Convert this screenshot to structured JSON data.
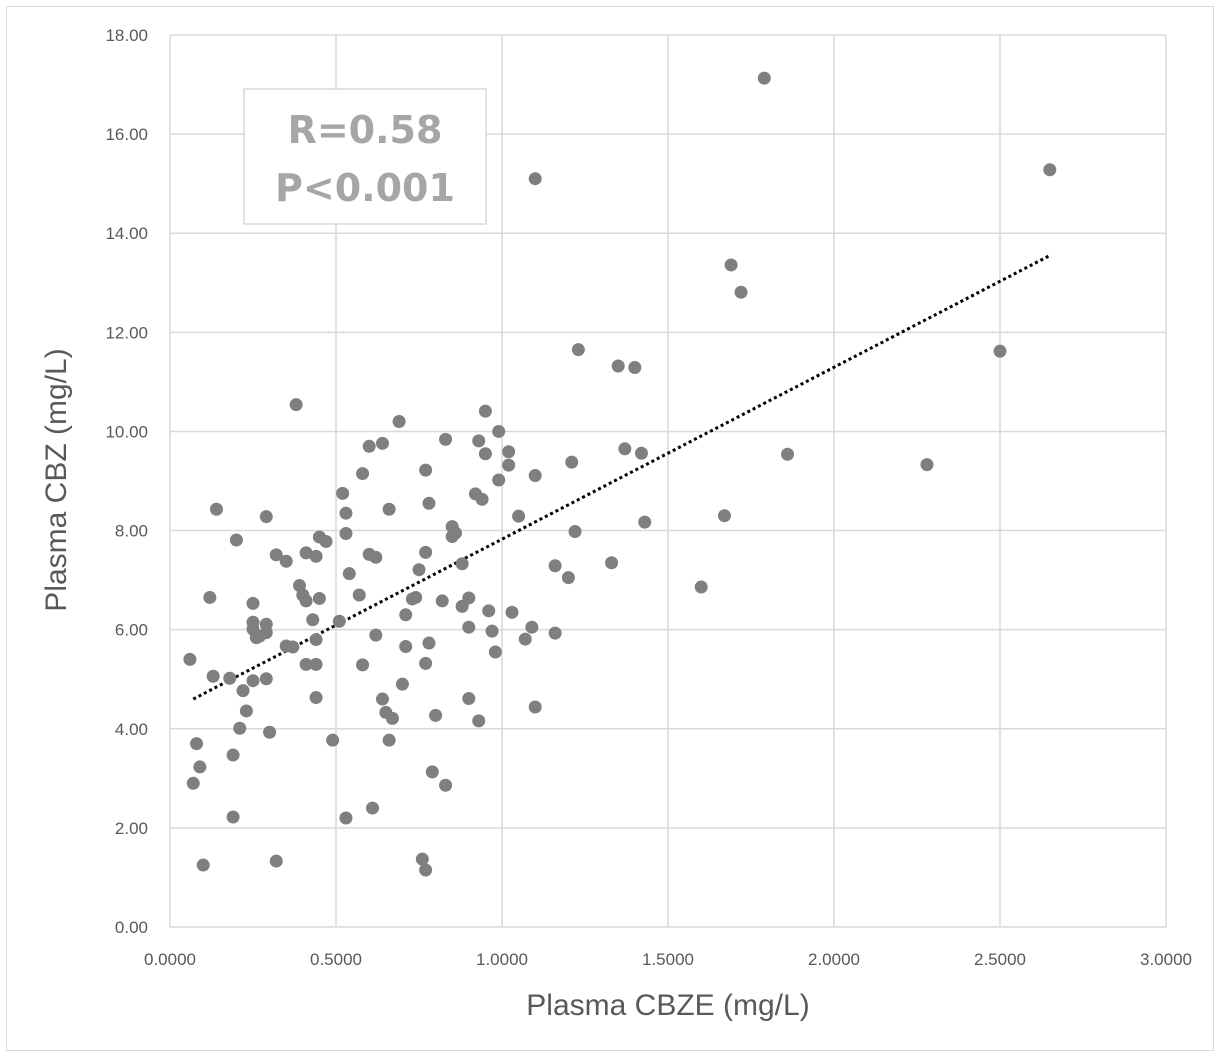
{
  "chart_data": {
    "type": "scatter",
    "title": "",
    "xlabel": "Plasma CBZE (mg/L)",
    "ylabel": "Plasma CBZ (mg/L)",
    "xlim": [
      0,
      3
    ],
    "ylim": [
      0,
      18
    ],
    "xticks": [
      "0.0000",
      "0.5000",
      "1.0000",
      "1.5000",
      "2.0000",
      "2.5000",
      "3.0000"
    ],
    "yticks": [
      "0.00",
      "2.00",
      "4.00",
      "6.00",
      "8.00",
      "10.00",
      "12.00",
      "14.00",
      "16.00",
      "18.00"
    ],
    "grid": true,
    "legend": "none",
    "marker_color": "#7f7f7f",
    "trendline": {
      "style": "dotted",
      "color": "#000000",
      "x": [
        0.07,
        2.65
      ],
      "y": [
        4.6,
        13.55
      ]
    },
    "annotation": {
      "line1": "R=0.58",
      "line2": "P<0.001"
    },
    "series": [
      {
        "points": [
          [
            0.06,
            5.4
          ],
          [
            0.07,
            2.9
          ],
          [
            0.08,
            3.7
          ],
          [
            0.09,
            3.23
          ],
          [
            0.1,
            1.25
          ],
          [
            0.12,
            6.65
          ],
          [
            0.13,
            5.06
          ],
          [
            0.14,
            8.43
          ],
          [
            0.18,
            5.02
          ],
          [
            0.19,
            3.47
          ],
          [
            0.19,
            2.22
          ],
          [
            0.2,
            7.81
          ],
          [
            0.21,
            4.01
          ],
          [
            0.22,
            4.77
          ],
          [
            0.23,
            4.36
          ],
          [
            0.25,
            6.53
          ],
          [
            0.25,
            6.15
          ],
          [
            0.25,
            6.01
          ],
          [
            0.25,
            4.97
          ],
          [
            0.26,
            5.84
          ],
          [
            0.27,
            5.87
          ],
          [
            0.29,
            8.28
          ],
          [
            0.29,
            6.11
          ],
          [
            0.29,
            5.94
          ],
          [
            0.29,
            5.01
          ],
          [
            0.3,
            3.93
          ],
          [
            0.32,
            7.51
          ],
          [
            0.32,
            1.33
          ],
          [
            0.35,
            7.38
          ],
          [
            0.35,
            5.67
          ],
          [
            0.37,
            5.65
          ],
          [
            0.38,
            10.54
          ],
          [
            0.39,
            6.89
          ],
          [
            0.4,
            6.7
          ],
          [
            0.41,
            7.55
          ],
          [
            0.41,
            6.58
          ],
          [
            0.41,
            5.3
          ],
          [
            0.43,
            6.2
          ],
          [
            0.44,
            7.48
          ],
          [
            0.44,
            5.8
          ],
          [
            0.44,
            5.3
          ],
          [
            0.44,
            4.63
          ],
          [
            0.45,
            7.87
          ],
          [
            0.45,
            6.63
          ],
          [
            0.47,
            7.78
          ],
          [
            0.49,
            3.77
          ],
          [
            0.51,
            6.17
          ],
          [
            0.52,
            8.75
          ],
          [
            0.53,
            8.35
          ],
          [
            0.53,
            7.94
          ],
          [
            0.53,
            2.2
          ],
          [
            0.54,
            7.13
          ],
          [
            0.57,
            6.7
          ],
          [
            0.58,
            9.15
          ],
          [
            0.58,
            5.29
          ],
          [
            0.6,
            9.7
          ],
          [
            0.6,
            7.52
          ],
          [
            0.61,
            2.4
          ],
          [
            0.62,
            7.46
          ],
          [
            0.62,
            5.89
          ],
          [
            0.64,
            9.76
          ],
          [
            0.64,
            4.6
          ],
          [
            0.65,
            4.33
          ],
          [
            0.66,
            3.77
          ],
          [
            0.66,
            8.43
          ],
          [
            0.67,
            4.21
          ],
          [
            0.69,
            10.2
          ],
          [
            0.7,
            4.9
          ],
          [
            0.71,
            6.3
          ],
          [
            0.71,
            5.66
          ],
          [
            0.73,
            6.62
          ],
          [
            0.74,
            6.65
          ],
          [
            0.75,
            7.21
          ],
          [
            0.76,
            1.37
          ],
          [
            0.77,
            7.56
          ],
          [
            0.77,
            9.22
          ],
          [
            0.77,
            5.32
          ],
          [
            0.77,
            1.15
          ],
          [
            0.78,
            8.55
          ],
          [
            0.78,
            5.73
          ],
          [
            0.79,
            3.13
          ],
          [
            0.8,
            4.27
          ],
          [
            0.82,
            6.58
          ],
          [
            0.83,
            9.84
          ],
          [
            0.83,
            2.86
          ],
          [
            0.85,
            8.08
          ],
          [
            0.85,
            7.88
          ],
          [
            0.86,
            7.95
          ],
          [
            0.88,
            7.33
          ],
          [
            0.88,
            6.47
          ],
          [
            0.9,
            6.64
          ],
          [
            0.9,
            6.05
          ],
          [
            0.9,
            4.61
          ],
          [
            0.92,
            8.74
          ],
          [
            0.93,
            9.81
          ],
          [
            0.93,
            4.16
          ],
          [
            0.94,
            8.63
          ],
          [
            0.95,
            10.41
          ],
          [
            0.95,
            9.55
          ],
          [
            0.96,
            6.38
          ],
          [
            0.97,
            5.97
          ],
          [
            0.98,
            5.55
          ],
          [
            0.99,
            10.0
          ],
          [
            0.99,
            9.02
          ],
          [
            1.02,
            9.59
          ],
          [
            1.02,
            9.32
          ],
          [
            1.03,
            6.35
          ],
          [
            1.05,
            8.29
          ],
          [
            1.07,
            5.81
          ],
          [
            1.09,
            6.05
          ],
          [
            1.1,
            15.1
          ],
          [
            1.1,
            9.11
          ],
          [
            1.1,
            4.44
          ],
          [
            1.16,
            7.29
          ],
          [
            1.16,
            5.93
          ],
          [
            1.2,
            7.05
          ],
          [
            1.21,
            9.38
          ],
          [
            1.22,
            7.98
          ],
          [
            1.23,
            11.65
          ],
          [
            1.33,
            7.35
          ],
          [
            1.35,
            11.32
          ],
          [
            1.37,
            9.65
          ],
          [
            1.4,
            11.29
          ],
          [
            1.42,
            9.56
          ],
          [
            1.43,
            8.17
          ],
          [
            1.6,
            6.86
          ],
          [
            1.67,
            8.3
          ],
          [
            1.69,
            13.36
          ],
          [
            1.72,
            12.81
          ],
          [
            1.79,
            17.13
          ],
          [
            1.86,
            9.54
          ],
          [
            2.28,
            9.33
          ],
          [
            2.5,
            11.62
          ],
          [
            2.65,
            15.28
          ]
        ]
      }
    ]
  }
}
